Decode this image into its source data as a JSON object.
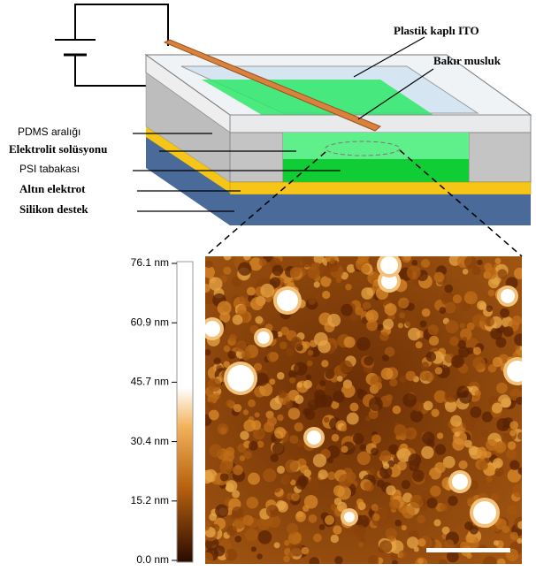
{
  "diagram": {
    "labels": {
      "top_cover": "Plastik kaplı ITO",
      "copper": "Bakır musluk",
      "pdms": "PDMS aralığı",
      "electrolyte": "Elektrolit solüsyonu",
      "psi": "PSI tabakası",
      "gold": "Altın elektrot",
      "silicon": "Silikon destek"
    },
    "colorbar": {
      "ticks": [
        "76.1 nm",
        "60.9 nm",
        "45.7 nm",
        "30.4 nm",
        "15.2 nm",
        "0.0 nm"
      ]
    }
  }
}
